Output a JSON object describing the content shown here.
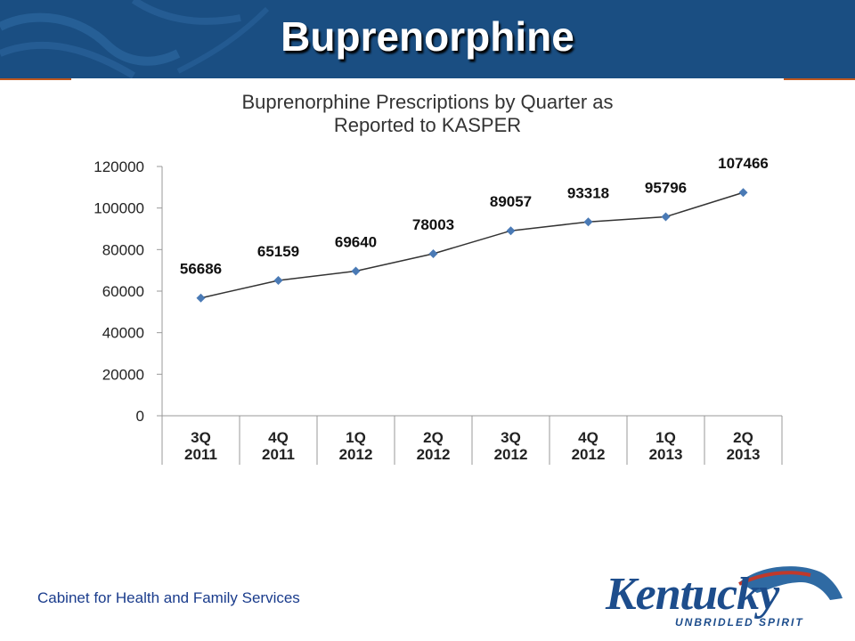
{
  "slide": {
    "title": "Buprenorphine",
    "footer": "Cabinet for Health and Family Services",
    "logo_text": "Kentucky",
    "logo_tagline": "UNBRIDLED SPIRIT"
  },
  "colors": {
    "banner": "#1a4e82",
    "accent_rule": "#c0581e",
    "series_line": "#333333",
    "marker": "#4a7ab5"
  },
  "chart_data": {
    "type": "line",
    "title_line1": "Buprenorphine  Prescriptions by Quarter as",
    "title_line2": "Reported to KASPER",
    "categories": [
      [
        "3Q",
        "2011"
      ],
      [
        "4Q",
        "2011"
      ],
      [
        "1Q",
        "2012"
      ],
      [
        "2Q",
        "2012"
      ],
      [
        "3Q",
        "2012"
      ],
      [
        "4Q",
        "2012"
      ],
      [
        "1Q",
        "2013"
      ],
      [
        "2Q",
        "2013"
      ]
    ],
    "values": [
      56686,
      65159,
      69640,
      78003,
      89057,
      93318,
      95796,
      107466
    ],
    "ylim": [
      0,
      120000
    ],
    "yticks": [
      0,
      20000,
      40000,
      60000,
      80000,
      100000,
      120000
    ],
    "grid": false,
    "data_labels": true
  }
}
